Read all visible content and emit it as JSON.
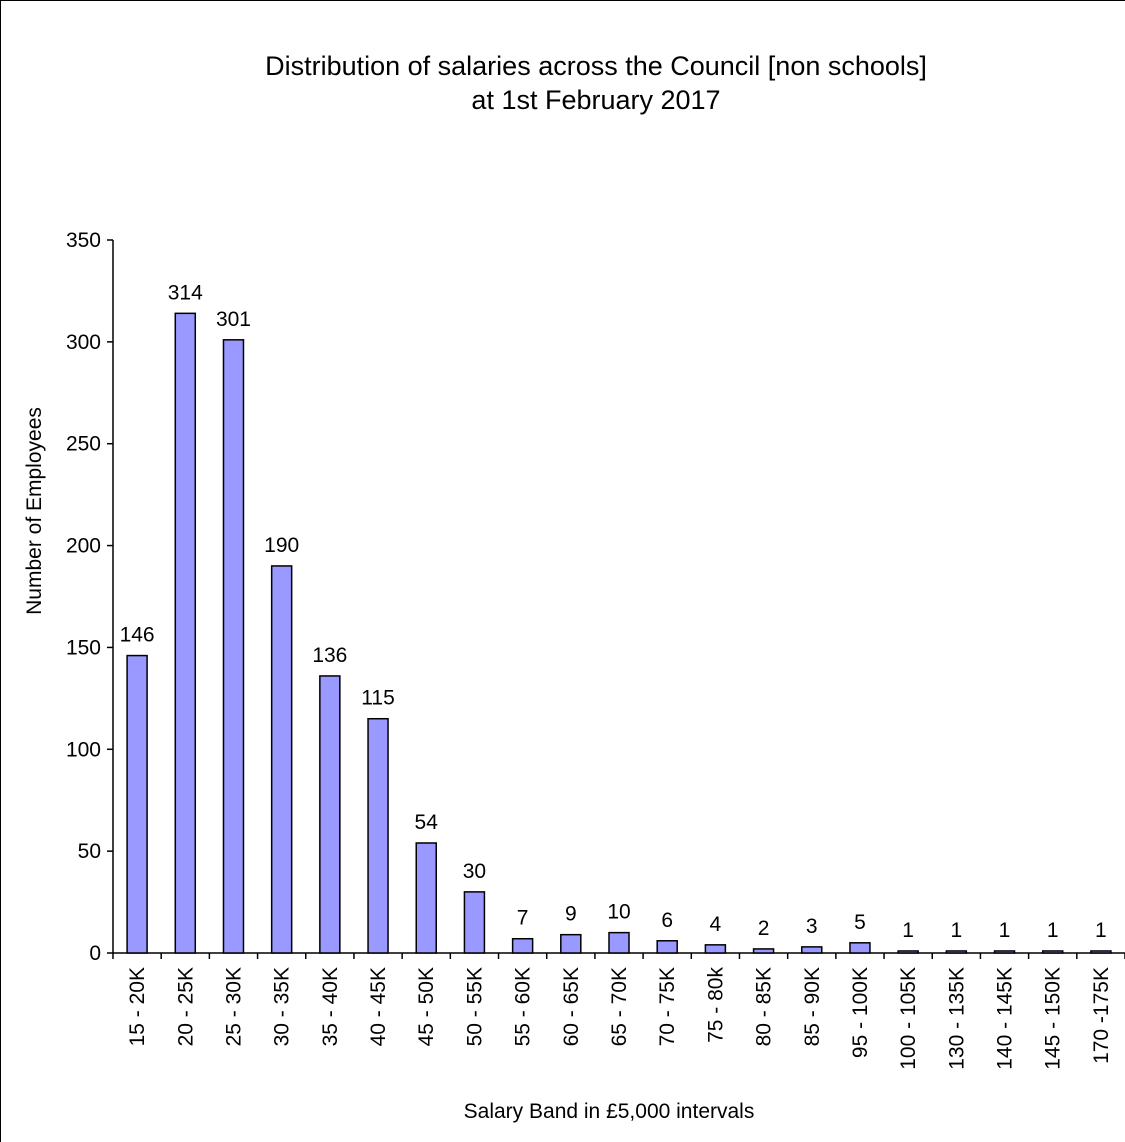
{
  "chart_data": {
    "type": "bar",
    "title_lines": [
      "Distribution of salaries across the Council [non schools]",
      "at 1st February 2017"
    ],
    "xlabel": "Salary Band in £5,000 intervals",
    "ylabel": "Number of Employees",
    "ylim": [
      0,
      350
    ],
    "yticks": [
      0,
      50,
      100,
      150,
      200,
      250,
      300,
      350
    ],
    "categories": [
      "15 - 20K",
      "20 - 25K",
      "25 - 30K",
      "30 - 35K",
      "35 - 40K",
      "40 - 45K",
      "45 - 50K",
      "50 - 55K",
      "55 - 60K",
      "60 - 65K",
      "65 - 70K",
      "70 - 75K",
      "75 - 80k",
      "80 - 85K",
      "85 - 90K",
      "95 - 100K",
      "100 - 105K",
      "130 - 135K",
      "140 - 145K",
      "145 - 150K",
      "170 -175K"
    ],
    "values": [
      146,
      314,
      301,
      190,
      136,
      115,
      54,
      30,
      7,
      9,
      10,
      6,
      4,
      2,
      3,
      5,
      1,
      1,
      1,
      1,
      1
    ],
    "data_labels": [
      "146",
      "314",
      "301",
      "190",
      "136",
      "115",
      "54",
      "30",
      "7",
      "9",
      "10",
      "6",
      "4",
      "2",
      "3",
      "5",
      "1",
      "1",
      "1",
      "1",
      "1"
    ],
    "bar_color": "#9999ff",
    "bar_outline": "#000000",
    "grid": false,
    "legend": "none"
  }
}
